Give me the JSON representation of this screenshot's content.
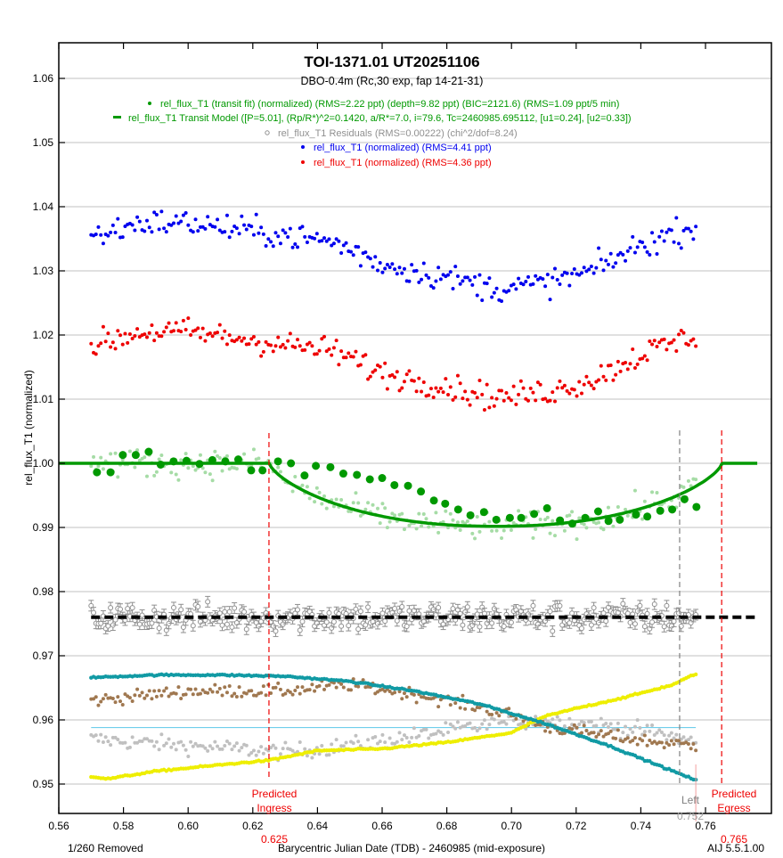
{
  "chart_data": {
    "type": "scatter",
    "title": "TOI-1371.01  UT20251106",
    "subtitle": "DBO-0.4m (Rc,30 exp, fap 14-21-31)",
    "xlabel": "Barycentric Julian Date (TDB) - 2460985 (mid-exposure)",
    "ylabel": "rel_flux_T1 (normalized)",
    "xlim": [
      0.56,
      0.776
    ],
    "ylim": [
      0.9455,
      1.0655
    ],
    "grid": true,
    "x_ticks": [
      "0.56",
      "0.58",
      "0.60",
      "0.62",
      "0.64",
      "0.66",
      "0.68",
      "0.70",
      "0.72",
      "0.74",
      "0.76"
    ],
    "x_tick_values": [
      0.56,
      0.58,
      0.6,
      0.62,
      0.64,
      0.66,
      0.68,
      0.7,
      0.72,
      0.74,
      0.76
    ],
    "y_ticks": [
      "0.95",
      "0.96",
      "0.97",
      "0.98",
      "0.99",
      "1.00",
      "1.01",
      "1.02",
      "1.03",
      "1.04",
      "1.05",
      "1.06"
    ],
    "y_tick_values": [
      0.95,
      0.96,
      0.97,
      0.98,
      0.99,
      1.0,
      1.01,
      1.02,
      1.03,
      1.04,
      1.05,
      1.06
    ],
    "legend": [
      {
        "marker": "dot",
        "color": "#009900",
        "text": "rel_flux_T1 (transit fit) (normalized) (RMS=2.22 ppt) (depth=9.82 ppt) (BIC=2121.6) (RMS=1.09 ppt/5 min)"
      },
      {
        "marker": "dash",
        "color": "#009900",
        "text": "rel_flux_T1 Transit Model ([P=5.01], (Rp/R*)^2=0.1420, a/R*=7.0, i=79.6, Tc=2460985.695112, [u1=0.24], [u2=0.33])"
      },
      {
        "marker": "circle",
        "color": "#909090",
        "text": "rel_flux_T1 Residuals (RMS=0.00222) (chi^2/dof=8.24)"
      },
      {
        "marker": "dot",
        "color": "#0000ee",
        "text": "rel_flux_T1 (normalized) (RMS=4.41 ppt)"
      },
      {
        "marker": "dot",
        "color": "#ee0000",
        "text": "rel_flux_T1 (normalized) (RMS=4.36 ppt)"
      }
    ],
    "legend_position": "top-center",
    "transit_model": {
      "tc": 0.695112,
      "depth": 0.00982,
      "ingress": 0.625,
      "egress": 0.765,
      "x_start": 0.56,
      "x_end": 0.776
    },
    "series": [
      {
        "name": "rel_flux_T1 (normalized) blue",
        "color": "#0000ee",
        "x_start": 0.57,
        "x_end": 0.757,
        "n": 250,
        "trend": [
          [
            0.57,
            1.0352
          ],
          [
            0.585,
            1.0375
          ],
          [
            0.6,
            1.0375
          ],
          [
            0.615,
            1.0365
          ],
          [
            0.63,
            1.0355
          ],
          [
            0.645,
            1.0345
          ],
          [
            0.66,
            1.031
          ],
          [
            0.68,
            1.029
          ],
          [
            0.695,
            1.0272
          ],
          [
            0.71,
            1.028
          ],
          [
            0.725,
            1.03
          ],
          [
            0.74,
            1.034
          ],
          [
            0.757,
            1.037
          ]
        ],
        "scatter": 0.0028
      },
      {
        "name": "rel_flux_T1 (normalized) red",
        "color": "#ee0000",
        "x_start": 0.57,
        "x_end": 0.757,
        "n": 250,
        "trend": [
          [
            0.57,
            1.0182
          ],
          [
            0.585,
            1.0205
          ],
          [
            0.6,
            1.0205
          ],
          [
            0.615,
            1.0195
          ],
          [
            0.63,
            1.0185
          ],
          [
            0.645,
            1.0175
          ],
          [
            0.66,
            1.014
          ],
          [
            0.68,
            1.012
          ],
          [
            0.695,
            1.0102
          ],
          [
            0.71,
            1.011
          ],
          [
            0.725,
            1.013
          ],
          [
            0.74,
            1.017
          ],
          [
            0.757,
            1.02
          ]
        ],
        "scatter": 0.0028
      },
      {
        "name": "rel_flux_T1 (transit fit) unbinned",
        "color": "#a6dca6",
        "x_start": 0.57,
        "x_end": 0.757,
        "n": 250,
        "scatter": 0.0022
      },
      {
        "name": "rel_flux_T1 (transit fit) binned 5 min",
        "color": "#009900",
        "points": [
          [
            0.5718,
            0.9986
          ],
          [
            0.576,
            0.9986
          ],
          [
            0.5798,
            1.0013
          ],
          [
            0.5838,
            1.0013
          ],
          [
            0.5878,
            1.0018
          ],
          [
            0.5915,
            0.9998
          ],
          [
            0.5955,
            1.0003
          ],
          [
            0.5995,
            1.0004
          ],
          [
            0.6035,
            0.9999
          ],
          [
            0.6075,
            1.0005
          ],
          [
            0.6115,
            1.0003
          ],
          [
            0.6155,
            1.0006
          ],
          [
            0.6195,
            0.9989
          ],
          [
            0.623,
            0.9989
          ],
          [
            0.6278,
            1.0003
          ],
          [
            0.6318,
            1.0
          ],
          [
            0.636,
            0.9981
          ],
          [
            0.6395,
            0.9996
          ],
          [
            0.644,
            0.9994
          ],
          [
            0.648,
            0.9984
          ],
          [
            0.6522,
            0.9982
          ],
          [
            0.6562,
            0.9975
          ],
          [
            0.66,
            0.9977
          ],
          [
            0.6638,
            0.9966
          ],
          [
            0.668,
            0.9965
          ],
          [
            0.672,
            0.9956
          ],
          [
            0.676,
            0.9942
          ],
          [
            0.6795,
            0.9937
          ],
          [
            0.6835,
            0.9928
          ],
          [
            0.6873,
            0.9919
          ],
          [
            0.6915,
            0.9924
          ],
          [
            0.6953,
            0.9912
          ],
          [
            0.6995,
            0.9915
          ],
          [
            0.703,
            0.9915
          ],
          [
            0.707,
            0.9921
          ],
          [
            0.711,
            0.993
          ],
          [
            0.715,
            0.9911
          ],
          [
            0.7188,
            0.9906
          ],
          [
            0.7228,
            0.9915
          ],
          [
            0.7268,
            0.9925
          ],
          [
            0.73,
            0.991
          ],
          [
            0.7335,
            0.9912
          ],
          [
            0.7385,
            0.992
          ],
          [
            0.742,
            0.9917
          ],
          [
            0.746,
            0.9926
          ],
          [
            0.7497,
            0.9928
          ],
          [
            0.7535,
            0.9944
          ],
          [
            0.7572,
            0.9932
          ]
        ]
      },
      {
        "name": "rel_flux_T1 Residuals",
        "color": "#909090",
        "x_start": 0.57,
        "x_end": 0.757,
        "n": 250,
        "offset": 0.976,
        "scatter": 0.0022
      },
      {
        "name": "baseline-teal",
        "color": "#119aa4",
        "trend": [
          [
            0.57,
            0.9666
          ],
          [
            0.59,
            0.967
          ],
          [
            0.61,
            0.967
          ],
          [
            0.63,
            0.9668
          ],
          [
            0.65,
            0.966
          ],
          [
            0.67,
            0.9645
          ],
          [
            0.69,
            0.9625
          ],
          [
            0.71,
            0.9595
          ],
          [
            0.73,
            0.956
          ],
          [
            0.745,
            0.953
          ],
          [
            0.757,
            0.9506
          ]
        ]
      },
      {
        "name": "baseline-brown",
        "color": "#a07850",
        "x_start": 0.57,
        "x_end": 0.757,
        "n": 250,
        "trend": [
          [
            0.57,
            0.963
          ],
          [
            0.6,
            0.9645
          ],
          [
            0.63,
            0.9645
          ],
          [
            0.65,
            0.9655
          ],
          [
            0.67,
            0.964
          ],
          [
            0.69,
            0.962
          ],
          [
            0.7,
            0.9608
          ],
          [
            0.71,
            0.959
          ],
          [
            0.73,
            0.9575
          ],
          [
            0.745,
            0.9565
          ],
          [
            0.757,
            0.956
          ]
        ],
        "scatter": 0.001
      },
      {
        "name": "baseline-gray",
        "color": "#c0c0c0",
        "x_start": 0.57,
        "x_end": 0.757,
        "n": 250,
        "trend": [
          [
            0.57,
            0.957
          ],
          [
            0.6,
            0.956
          ],
          [
            0.63,
            0.955
          ],
          [
            0.65,
            0.956
          ],
          [
            0.67,
            0.9575
          ],
          [
            0.69,
            0.959
          ],
          [
            0.71,
            0.96
          ],
          [
            0.73,
            0.959
          ],
          [
            0.745,
            0.958
          ],
          [
            0.757,
            0.9565
          ]
        ],
        "scatter": 0.0013
      },
      {
        "name": "baseline-yellow",
        "color": "#eeee00",
        "trend": [
          [
            0.57,
            0.9512
          ],
          [
            0.575,
            0.9508
          ],
          [
            0.59,
            0.952
          ],
          [
            0.61,
            0.953
          ],
          [
            0.625,
            0.9537
          ],
          [
            0.64,
            0.9552
          ],
          [
            0.66,
            0.9555
          ],
          [
            0.68,
            0.9565
          ],
          [
            0.7,
            0.958
          ],
          [
            0.71,
            0.9605
          ],
          [
            0.72,
            0.9618
          ],
          [
            0.735,
            0.9635
          ],
          [
            0.75,
            0.9655
          ],
          [
            0.757,
            0.9672
          ]
        ]
      }
    ],
    "horizontal_lines": [
      {
        "name": "residual-baseline",
        "y": 0.976,
        "color": "#000000",
        "style": "dashed"
      },
      {
        "name": "cyan-reference",
        "y": 0.9588,
        "x_start": 0.57,
        "x_end": 0.757,
        "color": "#5bc8e8"
      }
    ],
    "annotations": {
      "ingress": {
        "label_line1": "Predicted",
        "label_line2": "Ingress",
        "value": "0.625",
        "x": 0.625,
        "color": "#ee0000"
      },
      "egress": {
        "label_line1": "Predicted",
        "label_line2": "Egress",
        "value": "0.765",
        "x": 0.765,
        "color": "#ee0000"
      },
      "left": {
        "label": "Left",
        "value": "0.752",
        "x": 0.752,
        "color": "#808080"
      },
      "right_marker": {
        "x": 0.757,
        "color": "#f4a0a0"
      },
      "removed": "1/260 Removed",
      "version": "AIJ 5.5.1.00"
    }
  }
}
